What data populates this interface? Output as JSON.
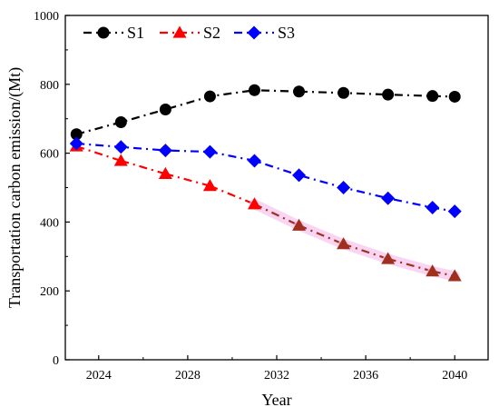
{
  "chart_data": {
    "type": "line",
    "xlabel": "Year",
    "ylabel": "Transportation carbon emission/(Mt)",
    "xlim": [
      2022.5,
      2041.5
    ],
    "ylim": [
      0,
      1000
    ],
    "xticks": [
      2024,
      2028,
      2032,
      2036,
      2040
    ],
    "yticks": [
      0,
      200,
      400,
      600,
      800,
      1000
    ],
    "grid": false,
    "legend": "top-left",
    "x": [
      2023,
      2025,
      2027,
      2029,
      2031,
      2033,
      2035,
      2037,
      2039,
      2040
    ],
    "series": [
      {
        "name": "S1",
        "color": "#000000",
        "marker": "circle",
        "values": [
          655,
          690,
          727,
          765,
          783,
          779,
          775,
          770,
          766,
          764
        ]
      },
      {
        "name": "S2",
        "color": "#ff0000",
        "marker_color_late": "#a0301e",
        "marker": "triangle",
        "values": [
          620,
          578,
          540,
          505,
          452,
          390,
          336,
          293,
          257,
          243
        ]
      },
      {
        "name": "S3",
        "color": "#0000ff",
        "marker": "diamond",
        "values": [
          628,
          618,
          608,
          604,
          578,
          536,
          500,
          469,
          442,
          431
        ]
      }
    ]
  }
}
